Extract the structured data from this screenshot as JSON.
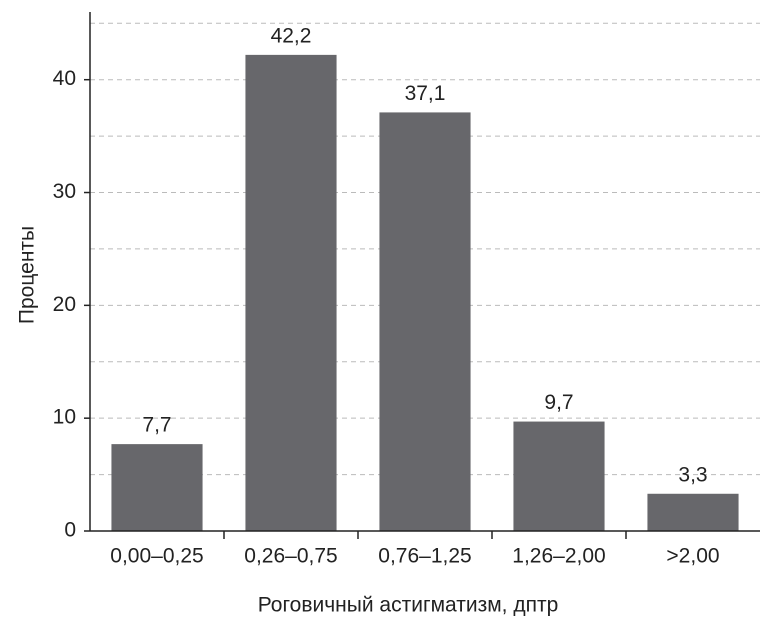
{
  "chart_data": {
    "type": "bar",
    "categories": [
      "0,00–0,25",
      "0,26–0,75",
      "0,76–1,25",
      "1,26–2,00",
      ">2,00"
    ],
    "values": [
      7.7,
      42.2,
      37.1,
      9.7,
      3.3
    ],
    "value_labels": [
      "7,7",
      "42,2",
      "37,1",
      "9,7",
      "3,3"
    ],
    "color": "#67676b",
    "x_label": "Роговичный астигматизм, дптр",
    "y_label": "Проценты",
    "ylim": [
      0,
      46
    ],
    "yticks": [
      0,
      10,
      20,
      30,
      40
    ],
    "minor_yticks": [
      5,
      15,
      25,
      35,
      45
    ],
    "grid": true
  }
}
